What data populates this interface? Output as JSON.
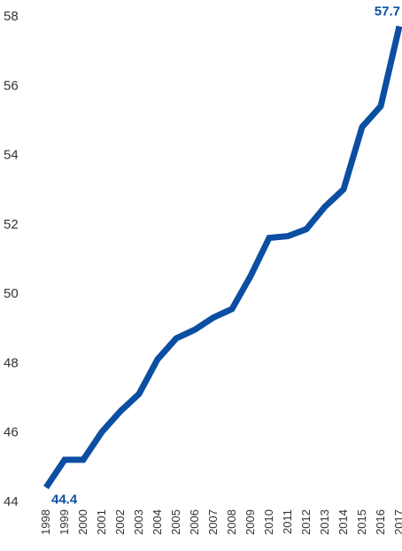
{
  "chart_data": {
    "type": "line",
    "title": "",
    "xlabel": "",
    "ylabel": "",
    "x": [
      "1998",
      "1999",
      "2000",
      "2001",
      "2002",
      "2003",
      "2004",
      "2005",
      "2006",
      "2007",
      "2008",
      "2009",
      "2010",
      "2011",
      "2012",
      "2013",
      "2014",
      "2015",
      "2016",
      "2017"
    ],
    "series": [
      {
        "values": [
          44.4,
          45.2,
          45.2,
          46.0,
          46.6,
          47.1,
          48.1,
          48.7,
          48.95,
          49.3,
          49.55,
          50.5,
          51.6,
          51.65,
          51.85,
          52.5,
          53.0,
          54.8,
          55.4,
          57.7
        ],
        "color": "#0b4ea2"
      }
    ],
    "ylim": [
      44,
      58
    ],
    "yticks": [
      44,
      46,
      48,
      50,
      52,
      54,
      56,
      58
    ],
    "data_labels": [
      {
        "index": 0,
        "text": "44.4"
      },
      {
        "index": 19,
        "text": "57.7"
      }
    ],
    "grid": false,
    "legend": "none"
  }
}
